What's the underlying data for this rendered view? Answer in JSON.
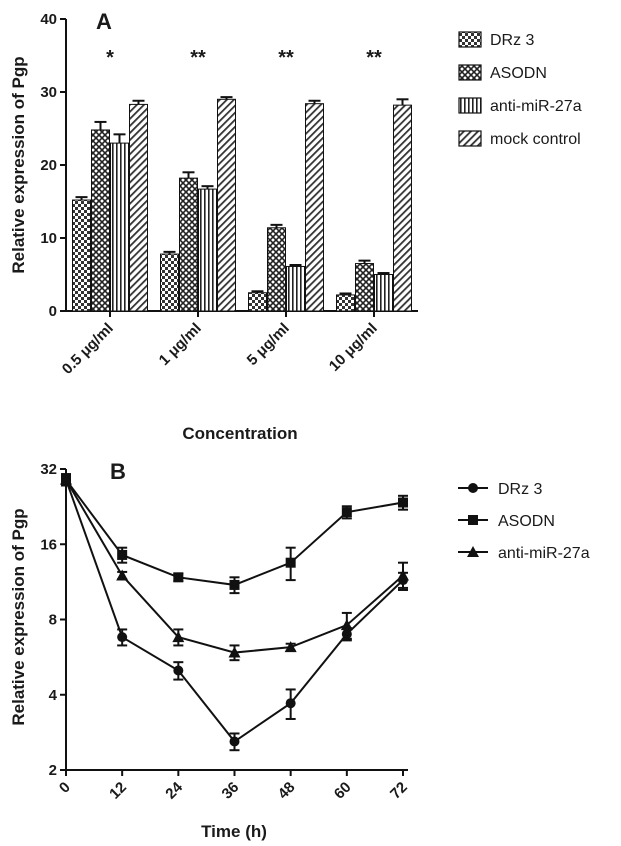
{
  "chart_data": [
    {
      "panel": "A",
      "type": "bar",
      "xlabel": "Concentration",
      "ylabel": "Relative expression of Pgp",
      "ylim": [
        0,
        40
      ],
      "yticks": [
        0,
        10,
        20,
        30,
        40
      ],
      "categories": [
        "0.5 μg/ml",
        "1 μg/ml",
        "5 μg/ml",
        "10 μg/ml"
      ],
      "significance": [
        "*",
        "**",
        "**",
        "**"
      ],
      "series": [
        {
          "name": "DRz 3",
          "values": [
            15.2,
            7.8,
            2.5,
            2.2
          ],
          "errors": [
            0.4,
            0.3,
            0.2,
            0.2
          ],
          "pattern": "checker"
        },
        {
          "name": "ASODN",
          "values": [
            24.8,
            18.2,
            11.4,
            6.5
          ],
          "errors": [
            1.1,
            0.8,
            0.4,
            0.4
          ],
          "pattern": "dense"
        },
        {
          "name": "anti-miR-27a",
          "values": [
            23.0,
            16.7,
            6.1,
            5.0
          ],
          "errors": [
            1.2,
            0.4,
            0.2,
            0.2
          ],
          "pattern": "vertical"
        },
        {
          "name": "mock control",
          "values": [
            28.3,
            29.0,
            28.4,
            28.2
          ],
          "errors": [
            0.5,
            0.3,
            0.4,
            0.8
          ],
          "pattern": "diagonal"
        }
      ],
      "legend_position": "right"
    },
    {
      "panel": "B",
      "type": "line",
      "xlabel": "Time (h)",
      "ylabel": "Relative expression of Pgp",
      "yscale": "log2",
      "ylim": [
        2,
        32
      ],
      "yticks": [
        2,
        4,
        8,
        16,
        32
      ],
      "x": [
        0,
        12,
        24,
        36,
        48,
        60,
        72
      ],
      "series": [
        {
          "name": "DRz 3",
          "marker": "circle",
          "values": [
            29.0,
            6.8,
            5.0,
            2.6,
            3.7,
            7.0,
            11.5
          ],
          "errors": [
            1.5,
            0.5,
            0.4,
            0.2,
            0.5,
            0.4,
            0.8
          ]
        },
        {
          "name": "ASODN",
          "marker": "square",
          "values": [
            29.0,
            14.5,
            11.8,
            11.0,
            13.5,
            21.5,
            23.5
          ],
          "errors": [
            1.5,
            1.0,
            0.4,
            0.8,
            2.0,
            1.2,
            1.5
          ]
        },
        {
          "name": "anti-miR-27a",
          "marker": "triangle",
          "values": [
            29.0,
            12.0,
            6.8,
            5.9,
            6.2,
            7.6,
            12.0
          ],
          "errors": [
            1.5,
            0.4,
            0.5,
            0.4,
            0.2,
            0.9,
            1.5
          ]
        }
      ],
      "legend_position": "right"
    }
  ]
}
